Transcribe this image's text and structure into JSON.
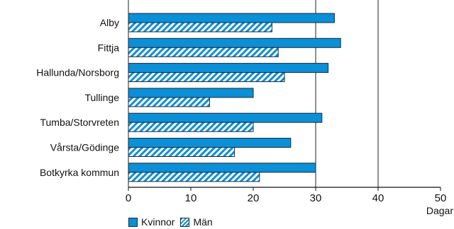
{
  "chart_data": {
    "type": "bar",
    "orientation": "horizontal",
    "title": "",
    "xlabel": "Dagar",
    "ylabel": "",
    "xlim": [
      0,
      50
    ],
    "xticks": [
      "0",
      "10",
      "20",
      "30",
      "40",
      "50"
    ],
    "grid": "vertical lines at 0, 30, 40",
    "legend_placement": "bottom-left",
    "categories": [
      "Alby",
      "Fittja",
      "Hallunda/Norsborg",
      "Tullinge",
      "Tumba/Storvreten",
      "Vårsta/Gödinge",
      "Botkyrka kommun"
    ],
    "series": [
      {
        "name": "Kvinnor",
        "values": [
          33,
          34,
          32,
          20,
          31,
          26,
          30
        ],
        "color": "#0b8fd6",
        "pattern": "solid"
      },
      {
        "name": "Män",
        "values": [
          23,
          24,
          25,
          13,
          20,
          17,
          21
        ],
        "color": "#0b8fd6",
        "pattern": "diagonal-hatch"
      }
    ]
  },
  "legend": {
    "items": [
      {
        "label": "Kvinnor"
      },
      {
        "label": "Män"
      }
    ]
  }
}
